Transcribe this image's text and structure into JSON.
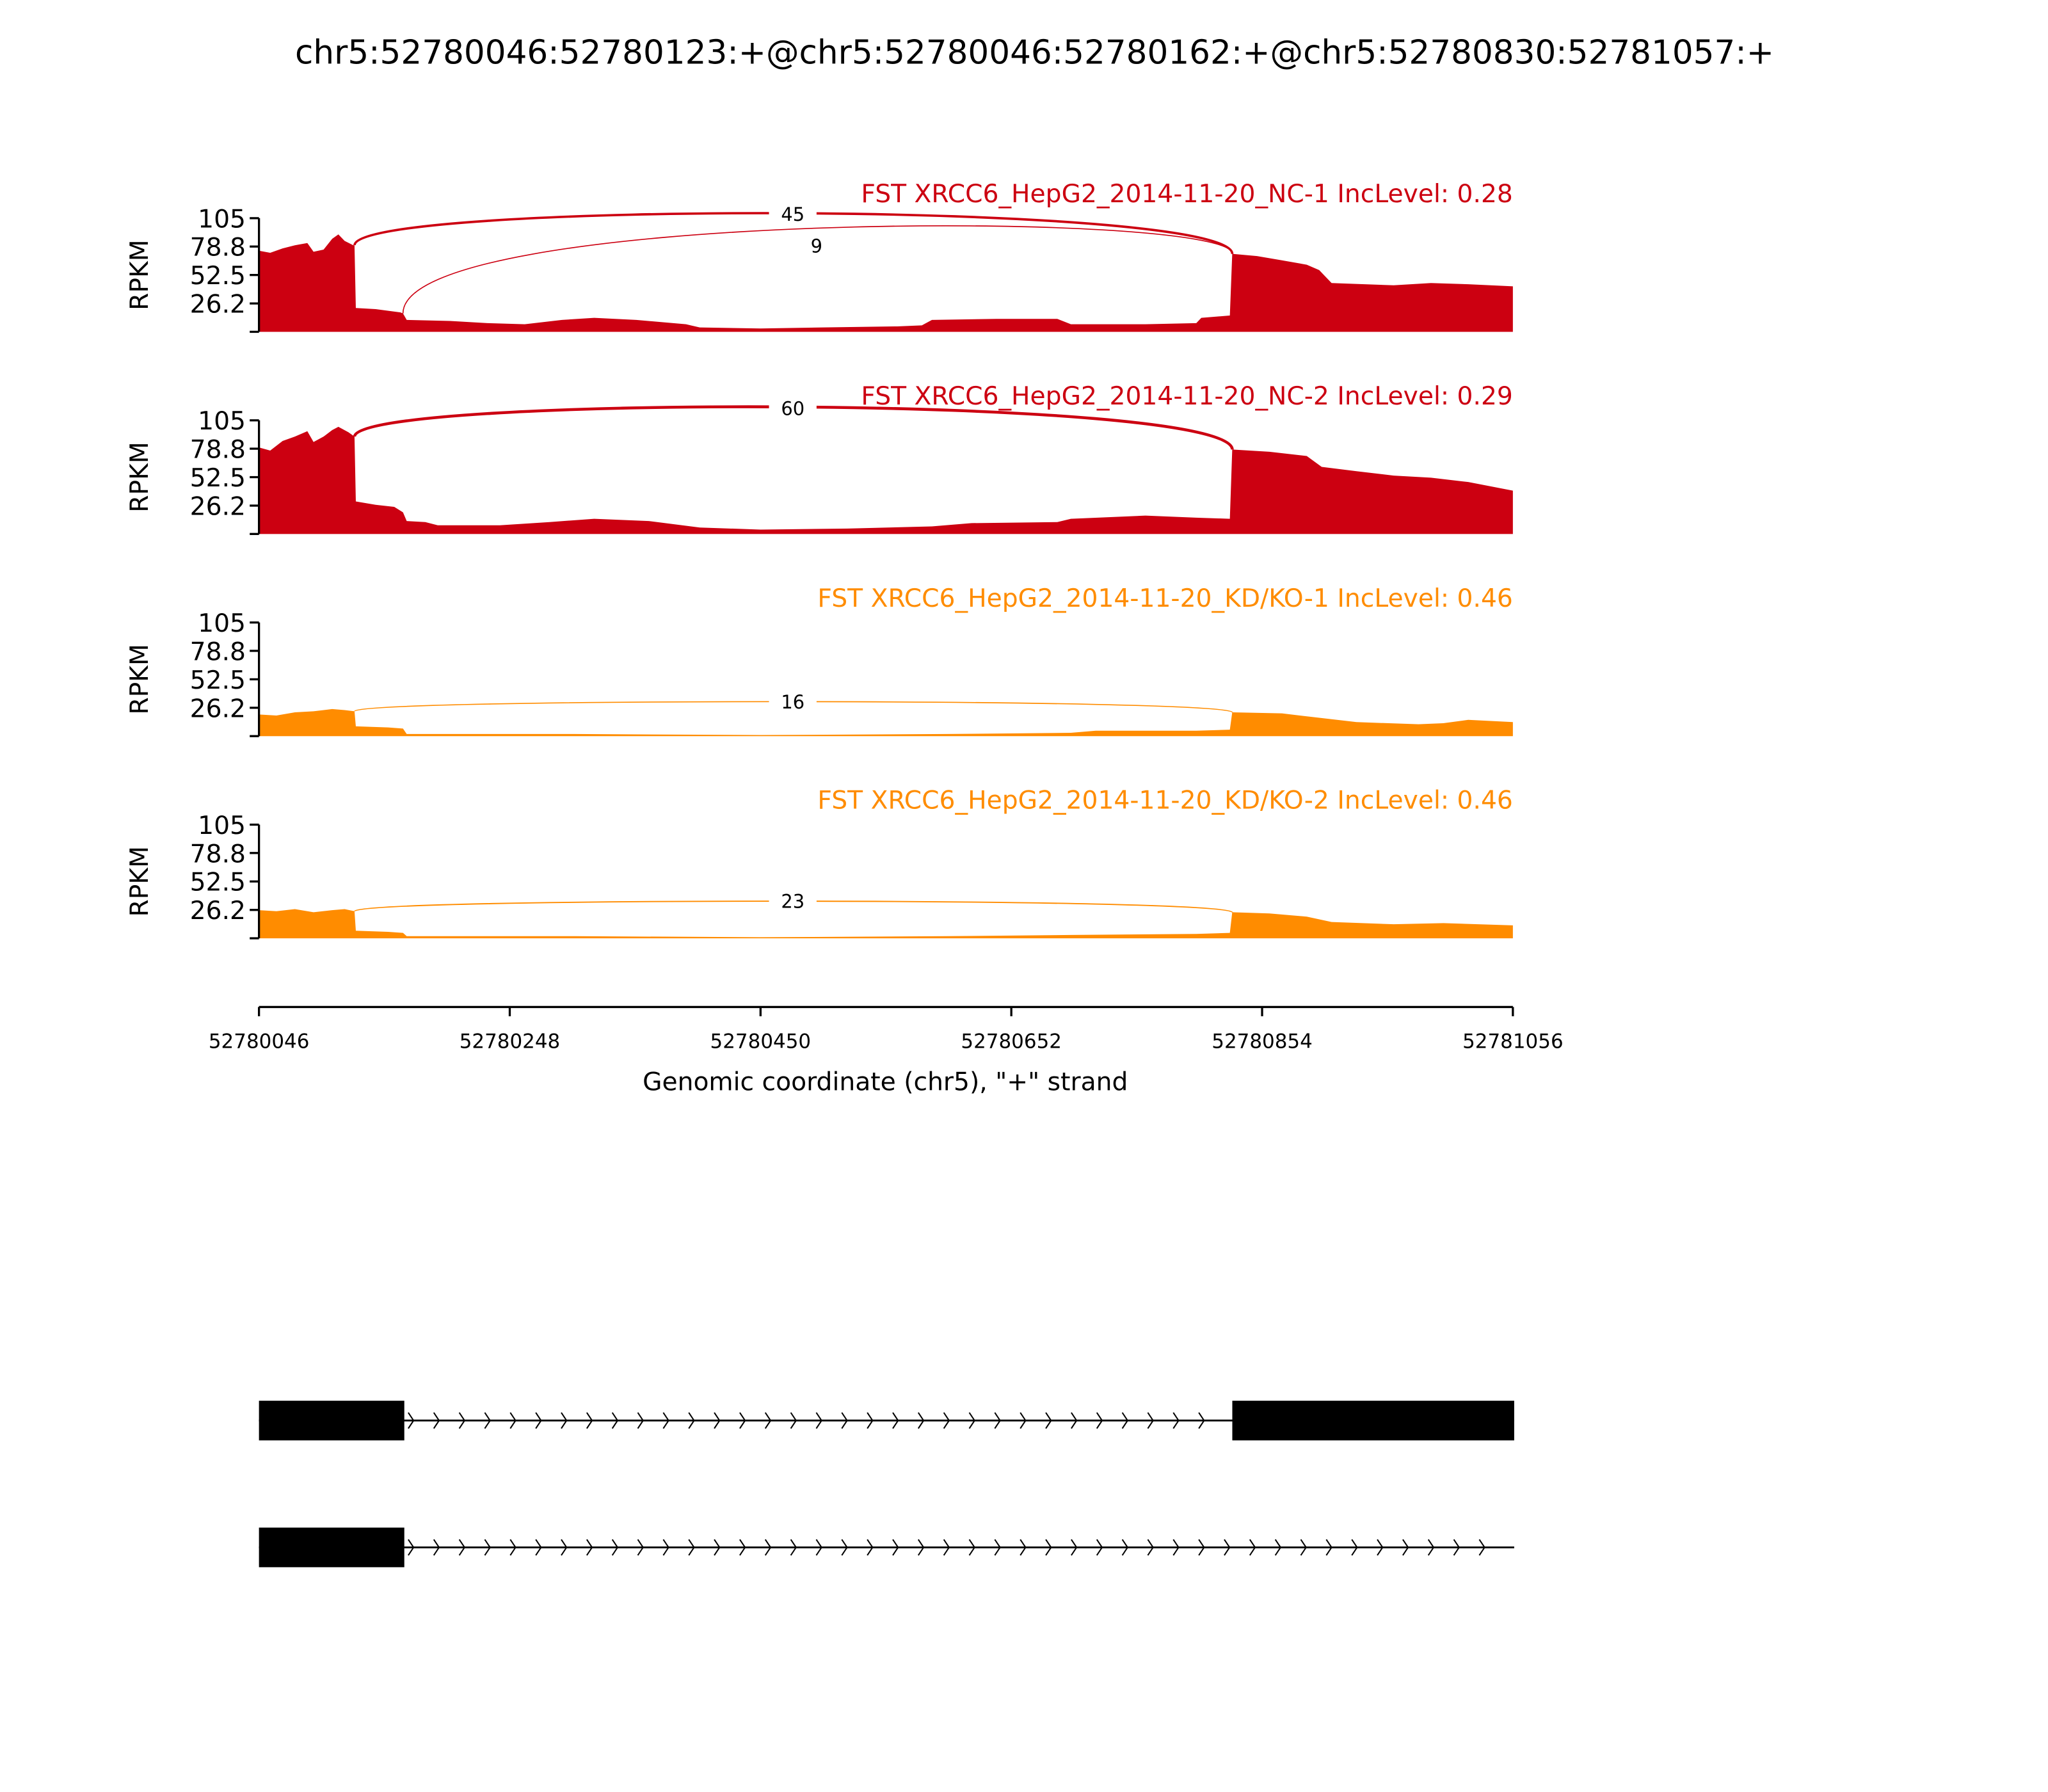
{
  "chart_data": {
    "type": "area",
    "title": "chr5:52780046:52780123:+@chr5:52780046:52780162:+@chr5:52780830:52781057:+",
    "xlabel": "Genomic coordinate (chr5), \"+\" strand",
    "ylabel": "RPKM",
    "xlim": [
      52780046,
      52781056
    ],
    "xticks": [
      "52780046",
      "52780248",
      "52780450",
      "52780652",
      "52780854",
      "52781056"
    ],
    "ylim": [
      0,
      105
    ],
    "yticks": [
      "105",
      "78.8",
      "52.5",
      "26.2"
    ],
    "grid": false,
    "panels": [
      {
        "label": "FST XRCC6_HepG2_2014-11-20_NC-1 IncLevel: 0.28",
        "color": "#cc0011",
        "coverage": [
          [
            52780046,
            75
          ],
          [
            52780055,
            73
          ],
          [
            52780065,
            77
          ],
          [
            52780075,
            80
          ],
          [
            52780085,
            82
          ],
          [
            52780090,
            74
          ],
          [
            52780098,
            76
          ],
          [
            52780105,
            86
          ],
          [
            52780110,
            90
          ],
          [
            52780115,
            84
          ],
          [
            52780122,
            80
          ],
          [
            52780123,
            80
          ],
          [
            52780124,
            22
          ],
          [
            52780140,
            21
          ],
          [
            52780160,
            18
          ],
          [
            52780162,
            17
          ],
          [
            52780165,
            11
          ],
          [
            52780200,
            10
          ],
          [
            52780230,
            8
          ],
          [
            52780260,
            7
          ],
          [
            52780290,
            11
          ],
          [
            52780316,
            13
          ],
          [
            52780350,
            11
          ],
          [
            52780390,
            7
          ],
          [
            52780401,
            4
          ],
          [
            52780450,
            3
          ],
          [
            52780500,
            4
          ],
          [
            52780560,
            5
          ],
          [
            52780580,
            6
          ],
          [
            52780588,
            11
          ],
          [
            52780640,
            12
          ],
          [
            52780689,
            12
          ],
          [
            52780700,
            7
          ],
          [
            52780760,
            7
          ],
          [
            52780801,
            8
          ],
          [
            52780805,
            13
          ],
          [
            52780828,
            15
          ],
          [
            52780830,
            72
          ],
          [
            52780850,
            70
          ],
          [
            52780870,
            66
          ],
          [
            52780890,
            62
          ],
          [
            52780900,
            57
          ],
          [
            52780910,
            45
          ],
          [
            52780960,
            43
          ],
          [
            52780990,
            45
          ],
          [
            52781020,
            44
          ],
          [
            52781056,
            42
          ]
        ],
        "junctions": [
          {
            "donor": 52780123,
            "acceptor": 52780830,
            "count": "45"
          },
          {
            "donor": 52780162,
            "acceptor": 52780830,
            "count": "9"
          }
        ]
      },
      {
        "label": "FST XRCC6_HepG2_2014-11-20_NC-2 IncLevel: 0.29",
        "color": "#cc0011",
        "coverage": [
          [
            52780046,
            80
          ],
          [
            52780055,
            77
          ],
          [
            52780065,
            86
          ],
          [
            52780075,
            90
          ],
          [
            52780085,
            95
          ],
          [
            52780090,
            85
          ],
          [
            52780098,
            90
          ],
          [
            52780105,
            96
          ],
          [
            52780110,
            99
          ],
          [
            52780118,
            94
          ],
          [
            52780123,
            90
          ],
          [
            52780124,
            30
          ],
          [
            52780140,
            27
          ],
          [
            52780155,
            25
          ],
          [
            52780162,
            20
          ],
          [
            52780165,
            12
          ],
          [
            52780180,
            11
          ],
          [
            52780190,
            8
          ],
          [
            52780240,
            8
          ],
          [
            52780280,
            11
          ],
          [
            52780316,
            14
          ],
          [
            52780360,
            12
          ],
          [
            52780401,
            6
          ],
          [
            52780450,
            4
          ],
          [
            52780520,
            5
          ],
          [
            52780588,
            7
          ],
          [
            52780620,
            10
          ],
          [
            52780689,
            11
          ],
          [
            52780700,
            14
          ],
          [
            52780760,
            17
          ],
          [
            52780801,
            15
          ],
          [
            52780828,
            14
          ],
          [
            52780830,
            78
          ],
          [
            52780860,
            76
          ],
          [
            52780890,
            72
          ],
          [
            52780902,
            62
          ],
          [
            52780930,
            58
          ],
          [
            52780960,
            54
          ],
          [
            52780990,
            52
          ],
          [
            52781020,
            48
          ],
          [
            52781056,
            40
          ]
        ],
        "junctions": [
          {
            "donor": 52780123,
            "acceptor": 52780830,
            "count": "60"
          }
        ]
      },
      {
        "label": "FST XRCC6_HepG2_2014-11-20_KD/KO-1 IncLevel: 0.46",
        "color": "#ff8c00",
        "coverage": [
          [
            52780046,
            20
          ],
          [
            52780060,
            19
          ],
          [
            52780075,
            22
          ],
          [
            52780090,
            23
          ],
          [
            52780105,
            25
          ],
          [
            52780115,
            24
          ],
          [
            52780123,
            23
          ],
          [
            52780124,
            9
          ],
          [
            52780150,
            8
          ],
          [
            52780162,
            7
          ],
          [
            52780165,
            2
          ],
          [
            52780300,
            2
          ],
          [
            52780450,
            1
          ],
          [
            52780600,
            2
          ],
          [
            52780700,
            3
          ],
          [
            52780720,
            5
          ],
          [
            52780801,
            5
          ],
          [
            52780828,
            6
          ],
          [
            52780830,
            22
          ],
          [
            52780870,
            21
          ],
          [
            52780900,
            17
          ],
          [
            52780930,
            13
          ],
          [
            52780980,
            11
          ],
          [
            52781000,
            12
          ],
          [
            52781020,
            15
          ],
          [
            52781056,
            13
          ]
        ],
        "junctions": [
          {
            "donor": 52780123,
            "acceptor": 52780830,
            "count": "16"
          }
        ]
      },
      {
        "label": "FST XRCC6_HepG2_2014-11-20_KD/KO-2 IncLevel: 0.46",
        "color": "#ff8c00",
        "coverage": [
          [
            52780046,
            26
          ],
          [
            52780060,
            25
          ],
          [
            52780075,
            27
          ],
          [
            52780090,
            24
          ],
          [
            52780105,
            26
          ],
          [
            52780115,
            27
          ],
          [
            52780123,
            25
          ],
          [
            52780124,
            7
          ],
          [
            52780150,
            6
          ],
          [
            52780162,
            5
          ],
          [
            52780165,
            2
          ],
          [
            52780300,
            2
          ],
          [
            52780450,
            1
          ],
          [
            52780600,
            2
          ],
          [
            52780700,
            3
          ],
          [
            52780801,
            4
          ],
          [
            52780828,
            5
          ],
          [
            52780830,
            24
          ],
          [
            52780860,
            23
          ],
          [
            52780890,
            20
          ],
          [
            52780910,
            15
          ],
          [
            52780960,
            13
          ],
          [
            52781000,
            14
          ],
          [
            52781056,
            12
          ]
        ],
        "junctions": [
          {
            "donor": 52780123,
            "acceptor": 52780830,
            "count": "23"
          }
        ]
      }
    ],
    "transcripts": [
      {
        "exons": [
          [
            52780046,
            52780162
          ],
          [
            52780830,
            52781056
          ]
        ],
        "strand": "+"
      },
      {
        "exons": [
          [
            52780046,
            52780162
          ]
        ],
        "end": 52781056,
        "strand": "+"
      }
    ]
  }
}
